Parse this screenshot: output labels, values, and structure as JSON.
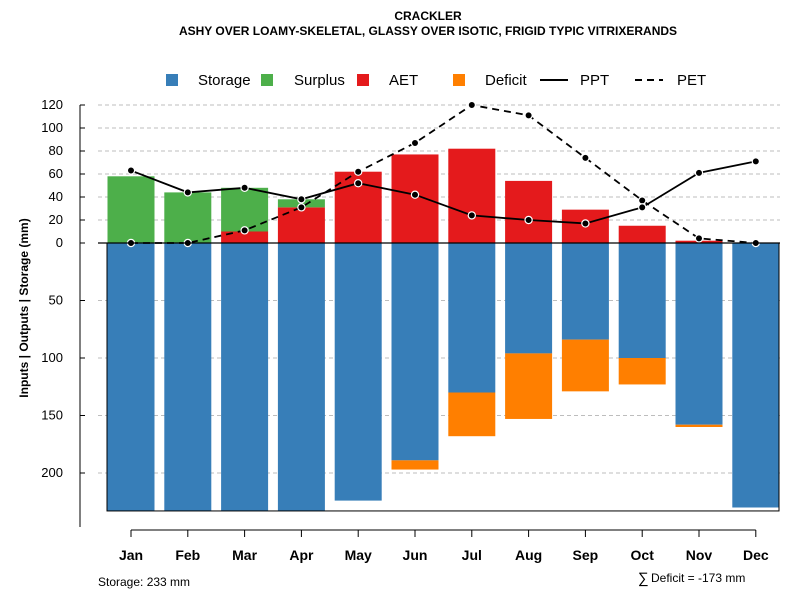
{
  "chart_data": {
    "type": "bar",
    "title": "CRACKLER",
    "subtitle": "ASHY OVER LOAMY-SKELETAL, GLASSY OVER ISOTIC, FRIGID TYPIC VITRIXERANDS",
    "ylabel": "Inputs | Outputs | Storage    (mm)",
    "categories": [
      "Jan",
      "Feb",
      "Mar",
      "Apr",
      "May",
      "Jun",
      "Jul",
      "Aug",
      "Sep",
      "Oct",
      "Nov",
      "Dec"
    ],
    "upper_axis": {
      "range": [
        0,
        120
      ],
      "ticks": [
        "0",
        "20",
        "40",
        "60",
        "80",
        "100",
        "120"
      ]
    },
    "lower_axis": {
      "range": [
        0,
        233
      ],
      "ticks": [
        "50",
        "100",
        "150",
        "200"
      ]
    },
    "legend": [
      {
        "key": "storage",
        "label": "Storage",
        "kind": "box",
        "color": "#377EB8"
      },
      {
        "key": "surplus",
        "label": "Surplus",
        "kind": "box",
        "color": "#4DAF4A"
      },
      {
        "key": "aet",
        "label": "AET",
        "kind": "box",
        "color": "#E41A1C"
      },
      {
        "key": "deficit",
        "label": "Deficit",
        "kind": "box",
        "color": "#FF7F00"
      },
      {
        "key": "ppt",
        "label": "PPT",
        "kind": "solid-line",
        "color": "#000000"
      },
      {
        "key": "pet",
        "label": "PET",
        "kind": "dashed-line",
        "color": "#000000"
      }
    ],
    "series": {
      "aet": {
        "name": "AET",
        "color": "#E41A1C",
        "values": [
          0,
          0,
          10,
          31,
          62,
          77,
          82,
          54,
          29,
          15,
          2,
          0
        ]
      },
      "surplus": {
        "name": "Surplus",
        "color": "#4DAF4A",
        "values": [
          58,
          44,
          38,
          7,
          0,
          0,
          0,
          0,
          0,
          0,
          0,
          0
        ]
      },
      "storage": {
        "name": "Storage",
        "color": "#377EB8",
        "values": [
          233,
          233,
          233,
          233,
          224,
          189,
          130,
          96,
          84,
          100,
          158,
          230
        ]
      },
      "deficit": {
        "name": "Deficit",
        "color": "#FF7F00",
        "values": [
          0,
          0,
          0,
          0,
          0,
          8,
          38,
          57,
          45,
          23,
          2,
          0
        ]
      },
      "ppt": {
        "name": "PPT",
        "color": "#000000",
        "values": [
          63,
          44,
          48,
          38,
          52,
          42,
          24,
          20,
          17,
          31,
          61,
          71
        ]
      },
      "pet": {
        "name": "PET",
        "color": "#000000",
        "values": [
          0,
          0,
          11,
          31,
          62,
          87,
          120,
          111,
          74,
          37,
          4,
          0
        ]
      }
    },
    "footer": {
      "storage_note": "Storage: 233 mm",
      "deficit_symbol": "∑",
      "deficit_note": "Deficit = -173 mm"
    }
  }
}
